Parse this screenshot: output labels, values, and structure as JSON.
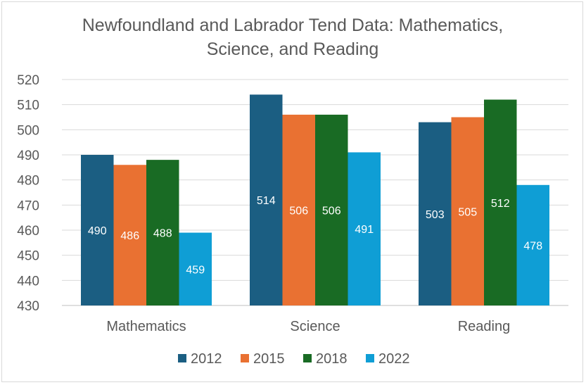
{
  "chart_data": {
    "type": "bar",
    "title_lines": [
      "Newfoundland and Labrador Tend Data: Mathematics,",
      "Science, and Reading"
    ],
    "categories": [
      "Mathematics",
      "Science",
      "Reading"
    ],
    "series": [
      {
        "name": "2012",
        "color": "#1b5e82",
        "values": [
          490,
          514,
          503
        ]
      },
      {
        "name": "2015",
        "color": "#e97132",
        "values": [
          486,
          506,
          505
        ]
      },
      {
        "name": "2018",
        "color": "#196b24",
        "values": [
          488,
          506,
          512
        ]
      },
      {
        "name": "2022",
        "color": "#0f9ed5",
        "values": [
          459,
          491,
          478
        ]
      }
    ],
    "ylim": [
      430,
      520
    ],
    "yticks": [
      430,
      440,
      450,
      460,
      470,
      480,
      490,
      500,
      510,
      520
    ],
    "grid": true,
    "legend_position": "bottom",
    "data_labels": true
  }
}
